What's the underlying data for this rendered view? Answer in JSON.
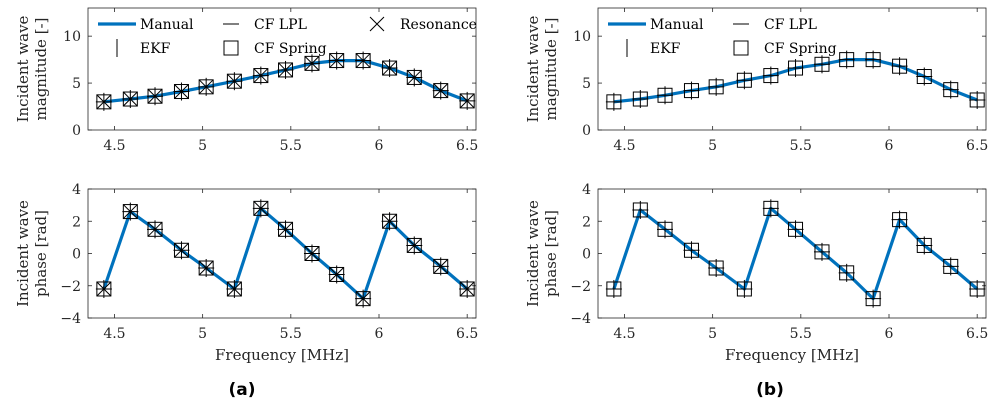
{
  "colors": {
    "manual": "#0072bd",
    "markers": "#000000",
    "axes": "#262626"
  },
  "captions": [
    "(a)",
    "(b)"
  ],
  "chart_data": [
    {
      "id": "a-top",
      "type": "line",
      "ylabel_lines": [
        "Incident wave",
        "magnitude [-]"
      ],
      "xlabel": "",
      "xlim": [
        4.35,
        6.55
      ],
      "ylim": [
        0,
        13
      ],
      "xticks": [
        4.5,
        5,
        5.5,
        6,
        6.5
      ],
      "xtick_labels": [
        "4.5",
        "5",
        "5.5",
        "6",
        "6.5"
      ],
      "yticks": [
        0,
        5,
        10
      ],
      "ytick_labels": [
        "0",
        "5",
        "10"
      ],
      "legend": [
        "Manual",
        "CF LPL",
        "Resonance",
        "EKF",
        "CF Spring"
      ],
      "x": [
        4.44,
        4.59,
        4.73,
        4.88,
        5.02,
        5.18,
        5.33,
        5.47,
        5.62,
        5.76,
        5.91,
        6.06,
        6.2,
        6.35,
        6.5
      ],
      "series": [
        {
          "name": "Manual",
          "values": [
            3.0,
            3.3,
            3.6,
            4.1,
            4.6,
            5.2,
            5.8,
            6.4,
            7.1,
            7.4,
            7.4,
            6.6,
            5.6,
            4.2,
            3.1
          ]
        },
        {
          "name": "CF Spring",
          "values": [
            3.0,
            3.3,
            3.6,
            4.1,
            4.6,
            5.2,
            5.8,
            6.4,
            7.1,
            7.4,
            7.4,
            6.6,
            5.6,
            4.2,
            3.1
          ]
        },
        {
          "name": "EKF",
          "values": [
            3.0,
            3.3,
            3.6,
            4.1,
            4.6,
            5.2,
            5.8,
            6.4,
            7.1,
            7.4,
            7.4,
            6.6,
            5.6,
            4.2,
            3.1
          ]
        },
        {
          "name": "CF LPL",
          "values": [
            3.0,
            3.3,
            3.6,
            4.1,
            4.6,
            5.2,
            5.8,
            6.4,
            7.1,
            7.4,
            7.4,
            6.6,
            5.6,
            4.2,
            3.1
          ]
        },
        {
          "name": "Resonance",
          "values": [
            3.0,
            3.3,
            3.6,
            4.1,
            4.6,
            5.2,
            5.8,
            6.4,
            7.1,
            7.4,
            7.4,
            6.6,
            5.6,
            4.2,
            3.1
          ]
        }
      ]
    },
    {
      "id": "a-bottom",
      "type": "line",
      "ylabel_lines": [
        "Incident wave",
        "phase [rad]"
      ],
      "xlabel": "Frequency [MHz]",
      "xlim": [
        4.35,
        6.55
      ],
      "ylim": [
        -4,
        4
      ],
      "xticks": [
        4.5,
        5,
        5.5,
        6,
        6.5
      ],
      "xtick_labels": [
        "4.5",
        "5",
        "5.5",
        "6",
        "6.5"
      ],
      "yticks": [
        -4,
        -2,
        0,
        2,
        4
      ],
      "ytick_labels": [
        "−4",
        "−2",
        "0",
        "2",
        "4"
      ],
      "legend": [],
      "x": [
        4.44,
        4.59,
        4.73,
        4.88,
        5.02,
        5.18,
        5.33,
        5.47,
        5.62,
        5.76,
        5.91,
        6.06,
        6.2,
        6.35,
        6.5
      ],
      "series": [
        {
          "name": "Manual",
          "values": [
            -2.2,
            2.6,
            1.5,
            0.2,
            -0.9,
            -2.2,
            2.8,
            1.5,
            0.0,
            -1.3,
            -2.8,
            2.0,
            0.5,
            -0.8,
            -2.2
          ]
        },
        {
          "name": "CF Spring",
          "values": [
            -2.2,
            2.6,
            1.5,
            0.2,
            -0.9,
            -2.2,
            2.8,
            1.5,
            0.0,
            -1.3,
            -2.8,
            2.0,
            0.5,
            -0.8,
            -2.2
          ]
        },
        {
          "name": "EKF",
          "values": [
            -2.2,
            2.6,
            1.5,
            0.2,
            -0.9,
            -2.2,
            2.8,
            1.5,
            0.0,
            -1.3,
            -2.8,
            2.0,
            0.5,
            -0.8,
            -2.2
          ]
        },
        {
          "name": "CF LPL",
          "values": [
            -2.2,
            2.6,
            1.5,
            0.2,
            -0.9,
            -2.2,
            2.8,
            1.5,
            0.0,
            -1.3,
            -2.8,
            2.0,
            0.5,
            -0.8,
            -2.2
          ]
        },
        {
          "name": "Resonance",
          "values": [
            -2.2,
            2.6,
            1.5,
            0.2,
            -0.9,
            -2.2,
            2.8,
            1.5,
            0.0,
            -1.3,
            -2.8,
            2.0,
            0.5,
            -0.8,
            -2.2
          ]
        }
      ]
    },
    {
      "id": "b-top",
      "type": "line",
      "ylabel_lines": [
        "Incident wave",
        "magnitude [-]"
      ],
      "xlabel": "",
      "xlim": [
        4.35,
        6.55
      ],
      "ylim": [
        0,
        13
      ],
      "xticks": [
        4.5,
        5,
        5.5,
        6,
        6.5
      ],
      "xtick_labels": [
        "4.5",
        "5",
        "5.5",
        "6",
        "6.5"
      ],
      "yticks": [
        0,
        5,
        10
      ],
      "ytick_labels": [
        "0",
        "5",
        "10"
      ],
      "legend": [
        "Manual",
        "CF LPL",
        "EKF",
        "CF Spring"
      ],
      "x": [
        4.44,
        4.59,
        4.73,
        4.88,
        5.02,
        5.18,
        5.33,
        5.47,
        5.62,
        5.76,
        5.91,
        6.06,
        6.2,
        6.35,
        6.5
      ],
      "series": [
        {
          "name": "Manual",
          "values": [
            3.0,
            3.3,
            3.7,
            4.2,
            4.6,
            5.3,
            5.8,
            6.6,
            7.0,
            7.5,
            7.5,
            6.8,
            5.7,
            4.3,
            3.2
          ]
        },
        {
          "name": "CF Spring",
          "values": [
            3.0,
            3.3,
            3.7,
            4.2,
            4.6,
            5.3,
            5.8,
            6.6,
            7.0,
            7.5,
            7.5,
            6.8,
            5.7,
            4.3,
            3.2
          ]
        },
        {
          "name": "EKF",
          "values": [
            3.0,
            3.3,
            3.7,
            4.2,
            4.6,
            5.3,
            5.8,
            6.6,
            7.0,
            7.5,
            7.5,
            6.8,
            5.7,
            4.3,
            3.2
          ]
        },
        {
          "name": "CF LPL",
          "values": [
            3.0,
            3.3,
            3.7,
            4.2,
            4.6,
            5.3,
            5.8,
            6.6,
            7.0,
            7.5,
            7.5,
            6.8,
            5.7,
            4.3,
            3.2
          ]
        }
      ]
    },
    {
      "id": "b-bottom",
      "type": "line",
      "ylabel_lines": [
        "Incident wave",
        "phase [rad]"
      ],
      "xlabel": "Frequency [MHz]",
      "xlim": [
        4.35,
        6.55
      ],
      "ylim": [
        -4,
        4
      ],
      "xticks": [
        4.5,
        5,
        5.5,
        6,
        6.5
      ],
      "xtick_labels": [
        "4.5",
        "5",
        "5.5",
        "6",
        "6.5"
      ],
      "yticks": [
        -4,
        -2,
        0,
        2,
        4
      ],
      "ytick_labels": [
        "−4",
        "−2",
        "0",
        "2",
        "4"
      ],
      "legend": [],
      "x": [
        4.44,
        4.59,
        4.73,
        4.88,
        5.02,
        5.18,
        5.33,
        5.47,
        5.62,
        5.76,
        5.91,
        6.06,
        6.2,
        6.35,
        6.5
      ],
      "series": [
        {
          "name": "Manual",
          "values": [
            -2.2,
            2.7,
            1.5,
            0.2,
            -0.9,
            -2.2,
            2.8,
            1.5,
            0.1,
            -1.2,
            -2.8,
            2.1,
            0.5,
            -0.8,
            -2.2
          ]
        },
        {
          "name": "CF Spring",
          "values": [
            -2.2,
            2.7,
            1.5,
            0.2,
            -0.9,
            -2.2,
            2.8,
            1.5,
            0.1,
            -1.2,
            -2.8,
            2.1,
            0.5,
            -0.8,
            -2.2
          ]
        },
        {
          "name": "EKF",
          "values": [
            -2.2,
            2.7,
            1.5,
            0.2,
            -0.9,
            -2.2,
            2.8,
            1.5,
            0.1,
            -1.2,
            -2.8,
            2.1,
            0.5,
            -0.8,
            -2.2
          ]
        },
        {
          "name": "CF LPL",
          "values": [
            -2.2,
            2.7,
            1.5,
            0.2,
            -0.9,
            -2.2,
            2.8,
            1.5,
            0.1,
            -1.2,
            -2.8,
            2.1,
            0.5,
            -0.8,
            -2.2
          ]
        }
      ]
    }
  ]
}
